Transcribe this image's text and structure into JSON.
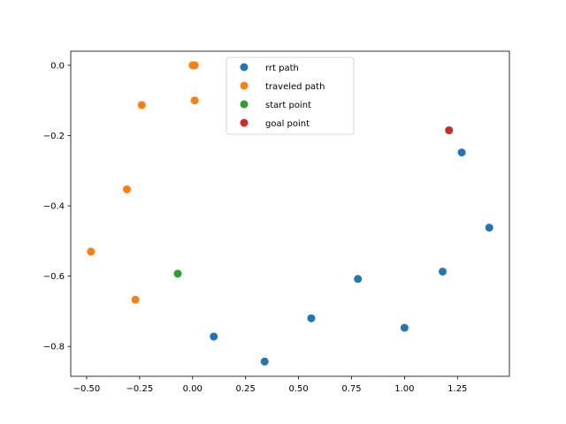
{
  "chart_data": {
    "type": "scatter",
    "title": "",
    "xlabel": "",
    "ylabel": "",
    "xlim": [
      -0.575,
      1.495
    ],
    "ylim": [
      -0.885,
      0.04
    ],
    "xticks": [
      -0.5,
      -0.25,
      0.0,
      0.25,
      0.5,
      0.75,
      1.0,
      1.25
    ],
    "xtick_labels": [
      "−0.50",
      "−0.25",
      "0.00",
      "0.25",
      "0.50",
      "0.75",
      "1.00",
      "1.25"
    ],
    "yticks": [
      0.0,
      -0.2,
      -0.4,
      -0.6,
      -0.8
    ],
    "ytick_labels": [
      "0.0",
      "−0.2",
      "−0.4",
      "−0.6",
      "−0.8"
    ],
    "grid": false,
    "legend_position": "top-center",
    "series": [
      {
        "name": "rrt path",
        "color": "#1f77b4",
        "points": [
          [
            1.27,
            -0.248
          ],
          [
            1.4,
            -0.462
          ],
          [
            1.18,
            -0.587
          ],
          [
            0.78,
            -0.608
          ],
          [
            1.0,
            -0.747
          ],
          [
            0.56,
            -0.72
          ],
          [
            0.34,
            -0.843
          ],
          [
            0.1,
            -0.772
          ]
        ]
      },
      {
        "name": "traveled path",
        "color": "#ff7f0e",
        "points": [
          [
            0.0,
            0.0
          ],
          [
            0.01,
            0.0
          ],
          [
            0.01,
            -0.1
          ],
          [
            -0.24,
            -0.113
          ],
          [
            -0.31,
            -0.353
          ],
          [
            -0.48,
            -0.53
          ],
          [
            -0.27,
            -0.667
          ]
        ]
      },
      {
        "name": "start point",
        "color": "#2ca02c",
        "points": [
          [
            -0.07,
            -0.593
          ]
        ]
      },
      {
        "name": "goal point",
        "color": "#d62728",
        "points": [
          [
            1.21,
            -0.185
          ]
        ]
      }
    ]
  }
}
